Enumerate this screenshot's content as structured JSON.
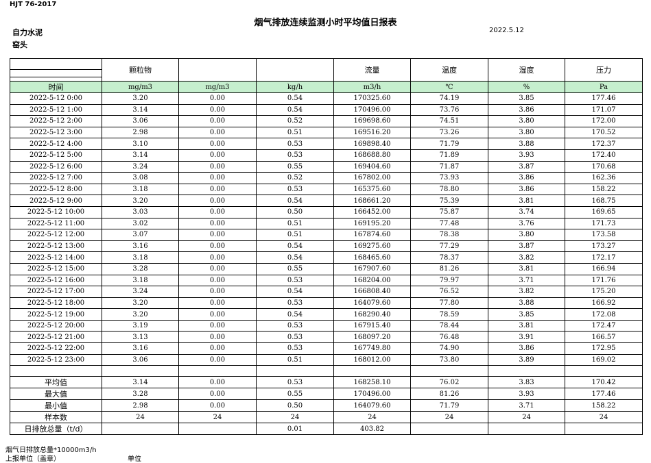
{
  "header": {
    "code": "HJT  76-2017",
    "title": "烟气排放连续监测小时平均值日报表",
    "company": "自力水泥",
    "date": "2022.5.12",
    "location": "窑头"
  },
  "table": {
    "columns": [
      "颗粒物",
      null,
      null,
      "流量",
      "温度",
      "湿度",
      "压力"
    ],
    "units": [
      "时间",
      "mg/m3",
      "mg/m3",
      "kg/h",
      "m3/h",
      "℃",
      "%",
      "Pa"
    ],
    "rows": [
      [
        "2022-5-12 0:00",
        "3.20",
        "0.00",
        "0.54",
        "170325.60",
        "74.19",
        "3.85",
        "177.46"
      ],
      [
        "2022-5-12 1:00",
        "3.14",
        "0.00",
        "0.54",
        "170496.00",
        "73.76",
        "3.86",
        "171.07"
      ],
      [
        "2022-5-12 2:00",
        "3.06",
        "0.00",
        "0.52",
        "169698.60",
        "74.51",
        "3.80",
        "172.00"
      ],
      [
        "2022-5-12 3:00",
        "2.98",
        "0.00",
        "0.51",
        "169516.20",
        "73.26",
        "3.80",
        "170.52"
      ],
      [
        "2022-5-12 4:00",
        "3.10",
        "0.00",
        "0.53",
        "169898.40",
        "71.79",
        "3.88",
        "172.37"
      ],
      [
        "2022-5-12 5:00",
        "3.14",
        "0.00",
        "0.53",
        "168688.80",
        "71.89",
        "3.93",
        "172.40"
      ],
      [
        "2022-5-12 6:00",
        "3.24",
        "0.00",
        "0.55",
        "169404.60",
        "71.87",
        "3.87",
        "170.68"
      ],
      [
        "2022-5-12 7:00",
        "3.08",
        "0.00",
        "0.52",
        "167802.00",
        "73.93",
        "3.86",
        "162.36"
      ],
      [
        "2022-5-12 8:00",
        "3.18",
        "0.00",
        "0.53",
        "165375.60",
        "78.80",
        "3.86",
        "158.22"
      ],
      [
        "2022-5-12 9:00",
        "3.20",
        "0.00",
        "0.54",
        "168661.20",
        "75.39",
        "3.81",
        "168.75"
      ],
      [
        "2022-5-12 10:00",
        "3.03",
        "0.00",
        "0.50",
        "166452.00",
        "75.87",
        "3.74",
        "169.65"
      ],
      [
        "2022-5-12 11:00",
        "3.02",
        "0.00",
        "0.51",
        "169195.20",
        "77.48",
        "3.76",
        "171.73"
      ],
      [
        "2022-5-12 12:00",
        "3.07",
        "0.00",
        "0.51",
        "167874.60",
        "78.38",
        "3.80",
        "173.58"
      ],
      [
        "2022-5-12 13:00",
        "3.16",
        "0.00",
        "0.54",
        "169275.60",
        "77.29",
        "3.87",
        "173.27"
      ],
      [
        "2022-5-12 14:00",
        "3.18",
        "0.00",
        "0.54",
        "168465.60",
        "78.37",
        "3.82",
        "172.17"
      ],
      [
        "2022-5-12 15:00",
        "3.28",
        "0.00",
        "0.55",
        "167907.60",
        "81.26",
        "3.81",
        "166.94"
      ],
      [
        "2022-5-12 16:00",
        "3.18",
        "0.00",
        "0.53",
        "168204.00",
        "79.97",
        "3.71",
        "171.76"
      ],
      [
        "2022-5-12 17:00",
        "3.24",
        "0.00",
        "0.54",
        "166808.40",
        "76.52",
        "3.82",
        "175.20"
      ],
      [
        "2022-5-12 18:00",
        "3.20",
        "0.00",
        "0.53",
        "164079.60",
        "77.80",
        "3.88",
        "166.92"
      ],
      [
        "2022-5-12 19:00",
        "3.20",
        "0.00",
        "0.54",
        "168290.40",
        "78.59",
        "3.85",
        "172.08"
      ],
      [
        "2022-5-12 20:00",
        "3.19",
        "0.00",
        "0.53",
        "167915.40",
        "78.44",
        "3.81",
        "172.47"
      ],
      [
        "2022-5-12 21:00",
        "3.13",
        "0.00",
        "0.53",
        "168097.20",
        "76.48",
        "3.91",
        "166.57"
      ],
      [
        "2022-5-12 22:00",
        "3.16",
        "0.00",
        "0.53",
        "167749.80",
        "74.90",
        "3.86",
        "172.95"
      ],
      [
        "2022-5-12 23:00",
        "3.06",
        "0.00",
        "0.51",
        "168012.00",
        "73.80",
        "3.89",
        "169.02"
      ]
    ],
    "summary": [
      [
        "平均值",
        "3.14",
        "0.00",
        "0.53",
        "168258.10",
        "76.02",
        "3.83",
        "170.42"
      ],
      [
        "最大值",
        "3.28",
        "0.00",
        "0.55",
        "170496.00",
        "81.26",
        "3.93",
        "177.46"
      ],
      [
        "最小值",
        "2.98",
        "0.00",
        "0.50",
        "164079.60",
        "71.79",
        "3.71",
        "158.22"
      ],
      [
        "样本数",
        "24",
        "24",
        "24",
        "24",
        "24",
        "24",
        "24"
      ],
      [
        "日排放总量（t/d）",
        null,
        null,
        "0.01",
        "403.82",
        null,
        null,
        null
      ]
    ]
  },
  "footer": {
    "note": "烟气日排放总量*10000m3/h",
    "unit_label": "上报单位（盖章）",
    "unit": "单位"
  }
}
